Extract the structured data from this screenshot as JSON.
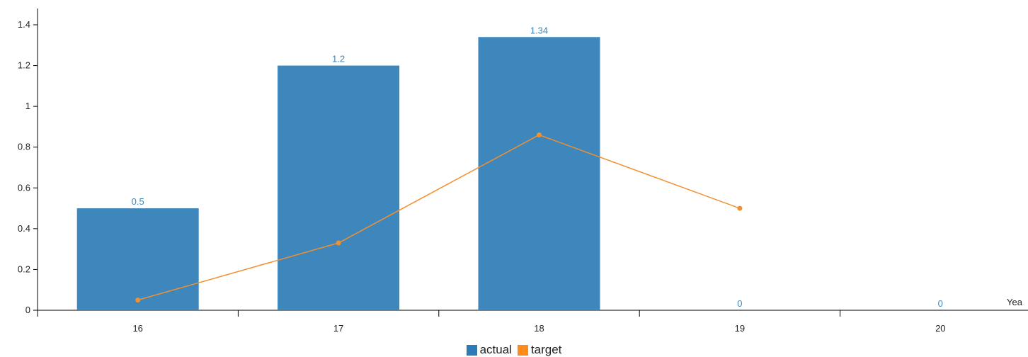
{
  "chart_data": {
    "type": "bar",
    "categories": [
      "16",
      "17",
      "18",
      "19",
      "20"
    ],
    "series": [
      {
        "name": "actual",
        "type": "bar",
        "values": [
          0.5,
          1.2,
          1.34,
          0,
          0
        ],
        "color": "#3d87bc"
      },
      {
        "name": "target",
        "type": "line",
        "values": [
          0.05,
          0.33,
          0.86,
          0.5,
          null
        ],
        "color": "#f28f2f"
      }
    ],
    "title": "",
    "xlabel": "Yea",
    "ylabel": "",
    "ylim": [
      0,
      1.4
    ],
    "yticks": [
      "0",
      "0.2",
      "0.4",
      "0.6",
      "0.8",
      "1",
      "1.2",
      "1.4"
    ],
    "data_labels": [
      "0.5",
      "1.2",
      "1.34",
      "0",
      "0"
    ],
    "legend_position": "bottom-center",
    "grid": false
  },
  "legend": {
    "actual_label": "actual",
    "actual_color": "#2b7bb9",
    "target_label": "target",
    "target_color": "#ff8c1a"
  }
}
